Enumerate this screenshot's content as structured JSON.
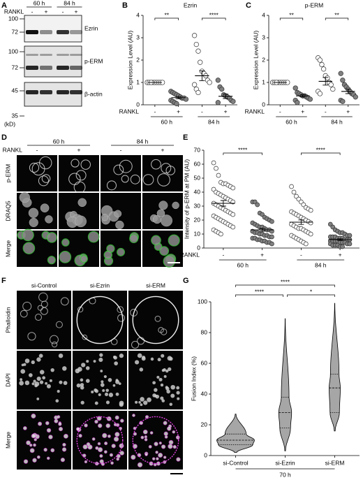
{
  "panels": {
    "A": {
      "letter": "A",
      "factor_label": "RANKL",
      "time_labels": [
        "60 h",
        "84 h"
      ],
      "lane_labels": [
        "-",
        "+",
        "-",
        "+"
      ],
      "blots": [
        {
          "label": "Ezrin",
          "markers": [
            100,
            72
          ]
        },
        {
          "label": "p-ERM",
          "markers": [
            100,
            72
          ]
        },
        {
          "label": "β-actin",
          "markers": [
            45,
            35
          ]
        }
      ],
      "unit": "(kD)"
    },
    "D": {
      "letter": "D",
      "factor_label": "RANKL",
      "time_labels": [
        "60 h",
        "84 h"
      ],
      "lane_labels": [
        "-",
        "+",
        "-",
        "+"
      ],
      "row_labels": [
        "p-ERM",
        "DRAQ5",
        "Merge"
      ]
    },
    "F": {
      "letter": "F",
      "column_labels": [
        "si-Control",
        "si-Ezrin",
        "si-ERM"
      ],
      "row_labels": [
        "Phalloidin",
        "DAPI",
        "Merge"
      ]
    }
  },
  "chart_data": [
    {
      "type": "dotplot",
      "letter": "B",
      "title": "Ezrin",
      "ylabel": "Expression Level (AU)",
      "ylim": [
        0,
        4
      ],
      "yticks": [
        0,
        1,
        2,
        3,
        4
      ],
      "categories": [
        "-",
        "+",
        "-",
        "+"
      ],
      "group_labels": [
        "60 h",
        "84 h"
      ],
      "factor_label": "RANKL",
      "significance": [
        "**",
        "****"
      ],
      "groups": [
        {
          "values": [
            1,
            1,
            1,
            1,
            1,
            1,
            1,
            1,
            1,
            1,
            1,
            1
          ],
          "mean": 1,
          "sem": 0,
          "fill": "#ffffff"
        },
        {
          "values": [
            0.6,
            0.55,
            0.5,
            0.45,
            0.4,
            0.35,
            0.3,
            0.3,
            0.25,
            0.2,
            0.15,
            0.1,
            0.05
          ],
          "mean": 0.32,
          "sem": 0.05,
          "fill": "#808080"
        },
        {
          "values": [
            3.1,
            2.7,
            2.4,
            1.9,
            1.5,
            1.4,
            1.3,
            1.1,
            1.0,
            0.9,
            0.7,
            0.55
          ],
          "mean": 1.3,
          "sem": 0.22,
          "fill": "#ffffff"
        },
        {
          "values": [
            1.1,
            0.8,
            0.7,
            0.45,
            0.4,
            0.35,
            0.3,
            0.2,
            0.15,
            0.1
          ],
          "mean": 0.38,
          "sem": 0.1,
          "fill": "#808080"
        }
      ]
    },
    {
      "type": "dotplot",
      "letter": "C",
      "title": "p-ERM",
      "ylabel": "Expression Level (AU)",
      "ylim": [
        0,
        4
      ],
      "yticks": [
        0,
        1,
        2,
        3,
        4
      ],
      "categories": [
        "-",
        "+",
        "-",
        "+"
      ],
      "group_labels": [
        "60 h",
        "84 h"
      ],
      "factor_label": "RANKL",
      "significance": [
        "**",
        "**"
      ],
      "groups": [
        {
          "values": [
            1,
            1,
            1,
            1,
            1,
            1,
            1,
            1,
            1,
            1,
            1,
            1
          ],
          "mean": 1,
          "sem": 0,
          "fill": "#ffffff"
        },
        {
          "values": [
            0.75,
            0.55,
            0.5,
            0.45,
            0.4,
            0.4,
            0.35,
            0.3,
            0.25,
            0.2,
            0.1
          ],
          "mean": 0.4,
          "sem": 0.05,
          "fill": "#808080"
        },
        {
          "values": [
            2.1,
            2.0,
            1.8,
            1.6,
            1.3,
            1.2,
            1.0,
            0.9,
            0.7,
            0.6,
            0.5
          ],
          "mean": 1.05,
          "sem": 0.17,
          "fill": "#ffffff"
        },
        {
          "values": [
            1.4,
            1.1,
            0.9,
            0.8,
            0.7,
            0.6,
            0.5,
            0.45,
            0.35,
            0.2,
            0.15
          ],
          "mean": 0.6,
          "sem": 0.1,
          "fill": "#808080"
        }
      ]
    },
    {
      "type": "dotplot",
      "letter": "E",
      "ylabel": "Intensity of p-ERM at PM (AU)",
      "ylim": [
        0,
        70
      ],
      "yticks": [
        0,
        10,
        20,
        30,
        40,
        50,
        60,
        70
      ],
      "categories": [
        "-",
        "+",
        "-",
        "+"
      ],
      "group_labels": [
        "60 h",
        "84 h"
      ],
      "factor_label": "RANKL",
      "significance": [
        "****",
        "****"
      ],
      "groups": [
        {
          "values": [
            61,
            57,
            52,
            47,
            46,
            46,
            45,
            44,
            43,
            42,
            40,
            39,
            38,
            37,
            36,
            35,
            34,
            33,
            32,
            31,
            30,
            29,
            28,
            27,
            26,
            25,
            24,
            23,
            22,
            21,
            20,
            19,
            18,
            17,
            16,
            15,
            13,
            12,
            11,
            10
          ],
          "mean": 32,
          "sem": 2,
          "fill": "#ffffff"
        },
        {
          "values": [
            33,
            33,
            31,
            25,
            24,
            22,
            21,
            20,
            19,
            18,
            17,
            16,
            15,
            15,
            14,
            13,
            13,
            12,
            12,
            11,
            11,
            10,
            10,
            9,
            9,
            8,
            8,
            7,
            7,
            6,
            6,
            5,
            5,
            4,
            4,
            3
          ],
          "mean": 13,
          "sem": 1,
          "fill": "#808080"
        },
        {
          "values": [
            44,
            40,
            37,
            35,
            33,
            31,
            29,
            28,
            27,
            26,
            25,
            24,
            23,
            22,
            21,
            20,
            19,
            18,
            17,
            16,
            15,
            14,
            14,
            13,
            12,
            11,
            10,
            9,
            8,
            7,
            6,
            5,
            4,
            3
          ],
          "mean": 18.5,
          "sem": 1.6,
          "fill": "#ffffff"
        },
        {
          "values": [
            17,
            15,
            13,
            12,
            11,
            11,
            10,
            9,
            9,
            8,
            8,
            8,
            7,
            7,
            7,
            6,
            6,
            6,
            5,
            5,
            5,
            5,
            4,
            4,
            4,
            3,
            3,
            3,
            2,
            2,
            2,
            1,
            1
          ],
          "mean": 6,
          "sem": 0.6,
          "fill": "#808080"
        }
      ]
    },
    {
      "type": "violin",
      "letter": "G",
      "ylabel": "Fusion Index (%)",
      "xlabel": "70 h",
      "ylim": [
        0,
        100
      ],
      "yticks": [
        0,
        20,
        40,
        60,
        80,
        100
      ],
      "categories": [
        "si-Control",
        "si-Ezrin",
        "si-ERM"
      ],
      "significance": [
        "****",
        "****",
        "*"
      ],
      "color": "#a6a6a6",
      "violins": [
        {
          "min": 2,
          "q1": 7,
          "median": 10,
          "q3": 14,
          "max": 27
        },
        {
          "min": 3,
          "q1": 18,
          "median": 28,
          "q3": 38,
          "max": 89
        },
        {
          "min": 16,
          "q1": 28,
          "median": 44,
          "q3": 53,
          "max": 99
        }
      ]
    }
  ]
}
